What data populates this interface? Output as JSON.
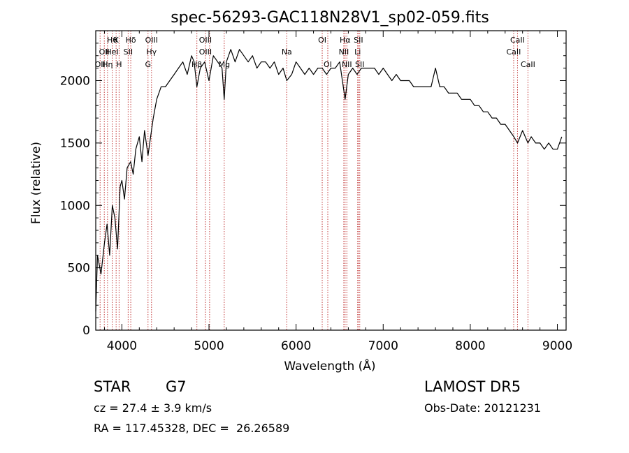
{
  "chart_data": {
    "type": "line",
    "title": "spec-56293-GAC118N28V1_sp02-059.fits",
    "xlabel": "Wavelength (Å)",
    "ylabel": "Flux (relative)",
    "xlim": [
      3700,
      9100
    ],
    "ylim": [
      0,
      2400
    ],
    "xticks": [
      4000,
      5000,
      6000,
      7000,
      8000,
      9000
    ],
    "yticks": [
      0,
      500,
      1000,
      1500,
      2000
    ],
    "grid": false,
    "series": [
      {
        "x": [
          3700,
          3720,
          3760,
          3800,
          3830,
          3860,
          3890,
          3920,
          3950,
          3980,
          4000,
          4030,
          4060,
          4100,
          4130,
          4160,
          4200,
          4230,
          4260,
          4300,
          4330,
          4360,
          4400,
          4450,
          4500,
          4550,
          4600,
          4650,
          4700,
          4750,
          4800,
          4830,
          4861,
          4900,
          4950,
          5000,
          5050,
          5100,
          5150,
          5175,
          5200,
          5250,
          5300,
          5350,
          5400,
          5450,
          5500,
          5550,
          5600,
          5650,
          5700,
          5750,
          5800,
          5850,
          5893,
          5950,
          6000,
          6050,
          6100,
          6150,
          6200,
          6250,
          6300,
          6350,
          6400,
          6450,
          6500,
          6563,
          6600,
          6650,
          6700,
          6750,
          6800,
          6850,
          6900,
          6950,
          7000,
          7050,
          7100,
          7150,
          7200,
          7250,
          7300,
          7350,
          7400,
          7450,
          7500,
          7550,
          7600,
          7650,
          7700,
          7750,
          7800,
          7850,
          7900,
          7950,
          8000,
          8050,
          8100,
          8150,
          8200,
          8250,
          8300,
          8350,
          8400,
          8450,
          8500,
          8542,
          8600,
          8662,
          8700,
          8750,
          8800,
          8850,
          8900,
          8950,
          9000,
          9050
        ],
        "y": [
          150,
          600,
          450,
          700,
          850,
          600,
          1000,
          900,
          650,
          1150,
          1200,
          1050,
          1300,
          1350,
          1250,
          1450,
          1550,
          1350,
          1600,
          1400,
          1550,
          1700,
          1850,
          1950,
          1950,
          2000,
          2050,
          2100,
          2150,
          2050,
          2200,
          2150,
          1950,
          2100,
          2150,
          2000,
          2200,
          2150,
          2100,
          1850,
          2150,
          2250,
          2150,
          2250,
          2200,
          2150,
          2200,
          2100,
          2150,
          2150,
          2100,
          2150,
          2050,
          2100,
          2000,
          2050,
          2150,
          2100,
          2050,
          2100,
          2050,
          2100,
          2100,
          2050,
          2100,
          2100,
          2150,
          1850,
          2050,
          2100,
          2050,
          2100,
          2100,
          2100,
          2100,
          2050,
          2100,
          2050,
          2000,
          2050,
          2000,
          2000,
          2000,
          1950,
          1950,
          1950,
          1950,
          1950,
          2100,
          1950,
          1950,
          1900,
          1900,
          1900,
          1850,
          1850,
          1850,
          1800,
          1800,
          1750,
          1750,
          1700,
          1700,
          1650,
          1650,
          1600,
          1550,
          1500,
          1600,
          1500,
          1550,
          1500,
          1500,
          1450,
          1500,
          1450,
          1450,
          1550
        ]
      }
    ],
    "lines": [
      {
        "x": 3750,
        "labels": [
          "",
          "",
          "OII"
        ]
      },
      {
        "x": 3798,
        "labels": [
          "",
          "OII",
          ""
        ]
      },
      {
        "x": 3835,
        "labels": [
          "",
          "",
          "Hη"
        ]
      },
      {
        "x": 3889,
        "labels": [
          "Hθ",
          "HeI",
          ""
        ]
      },
      {
        "x": 3934,
        "labels": [
          "K",
          "",
          ""
        ]
      },
      {
        "x": 3968,
        "labels": [
          "",
          "",
          "H"
        ]
      },
      {
        "x": 4072,
        "labels": [
          "",
          "SII",
          ""
        ]
      },
      {
        "x": 4102,
        "labels": [
          "Hδ",
          "",
          ""
        ]
      },
      {
        "x": 4300,
        "labels": [
          "",
          "",
          "G"
        ]
      },
      {
        "x": 4340,
        "labels": [
          "OIII",
          "Hγ",
          ""
        ]
      },
      {
        "x": 4861,
        "labels": [
          "",
          "",
          "Hβ"
        ]
      },
      {
        "x": 4959,
        "labels": [
          "OIII",
          "OIII",
          ""
        ]
      },
      {
        "x": 5007,
        "labels": [
          "",
          "",
          ""
        ]
      },
      {
        "x": 5175,
        "labels": [
          "",
          "",
          "Mg"
        ]
      },
      {
        "x": 5893,
        "labels": [
          "",
          "Na",
          ""
        ]
      },
      {
        "x": 6300,
        "labels": [
          "OI",
          "",
          ""
        ]
      },
      {
        "x": 6364,
        "labels": [
          "",
          "",
          "OI"
        ]
      },
      {
        "x": 6548,
        "labels": [
          "",
          "NII",
          ""
        ]
      },
      {
        "x": 6563,
        "labels": [
          "Hα",
          "",
          ""
        ]
      },
      {
        "x": 6583,
        "labels": [
          "",
          "",
          "NII"
        ]
      },
      {
        "x": 6707,
        "labels": [
          "",
          "Li",
          ""
        ]
      },
      {
        "x": 6716,
        "labels": [
          "SII",
          "",
          ""
        ]
      },
      {
        "x": 6731,
        "labels": [
          "",
          "",
          "SII"
        ]
      },
      {
        "x": 8498,
        "labels": [
          "",
          "CaII",
          ""
        ]
      },
      {
        "x": 8542,
        "labels": [
          "CaII",
          "",
          ""
        ]
      },
      {
        "x": 8662,
        "labels": [
          "",
          "",
          "CaII"
        ]
      }
    ]
  },
  "info": {
    "object_class": "STAR",
    "subclass": "G7",
    "cz": "cz = 27.4 ± 3.9 km/s",
    "coords": "RA = 117.45328, DEC =  26.26589",
    "survey": "LAMOST DR5",
    "obs_date": "Obs-Date: 20121231"
  }
}
